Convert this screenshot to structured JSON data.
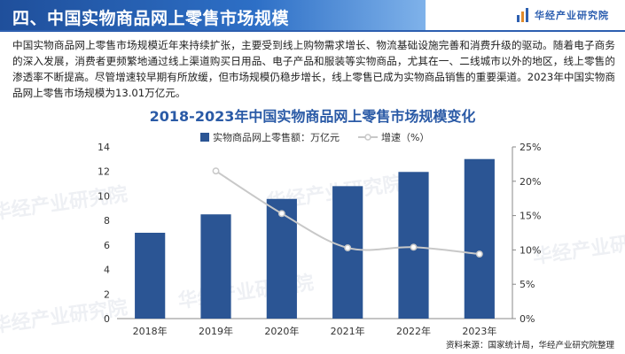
{
  "header": {
    "title": "四、中国实物商品网上零售市场规模",
    "brand": "华经产业研究院"
  },
  "intro": "中国实物商品网上零售市场规模近年来持续扩张，主要受到线上购物需求增长、物流基础设施完善和消费升级的驱动。随着电子商务的深入发展，消费者更频繁地通过线上渠道购买日用品、电子产品和服装等实物商品，尤其在一、二线城市以外的地区，线上零售的渗透率不断提高。尽管增速较早期有所放缓，但市场规模仍稳步增长，线上零售已成为实物商品销售的重要渠道。2023年中国实物商品网上零售市场规模为13.01万亿元。",
  "watermark": "华经产业研究院",
  "source": "资料来源：国家统计局，华经产业研究院整理",
  "colors": {
    "bar": "#2b5594",
    "line": "#c8c8c8",
    "title": "#2a5aa6",
    "header": "#1f4f9b"
  },
  "chart_data": {
    "type": "bar",
    "title": "2018-2023年中国实物商品网上零售市场规模变化",
    "categories": [
      "2018年",
      "2019年",
      "2020年",
      "2021年",
      "2022年",
      "2023年"
    ],
    "series": [
      {
        "name": "实物商品网上零售额：万亿元",
        "type": "bar",
        "axis": "left",
        "values": [
          7.0,
          8.5,
          9.76,
          10.8,
          11.96,
          13.01
        ]
      },
      {
        "name": "增速（%）",
        "type": "line",
        "axis": "right",
        "values": [
          null,
          21.5,
          15.3,
          10.3,
          10.4,
          9.4
        ]
      }
    ],
    "ylim_left": [
      0,
      14
    ],
    "yticks_left": [
      "0",
      "2",
      "4",
      "6",
      "8",
      "10",
      "12",
      "14"
    ],
    "ylim_right": [
      0,
      25
    ],
    "yticks_right": [
      "0%",
      "5%",
      "10%",
      "15%",
      "20%",
      "25%"
    ],
    "grid": false,
    "legend": "top"
  }
}
